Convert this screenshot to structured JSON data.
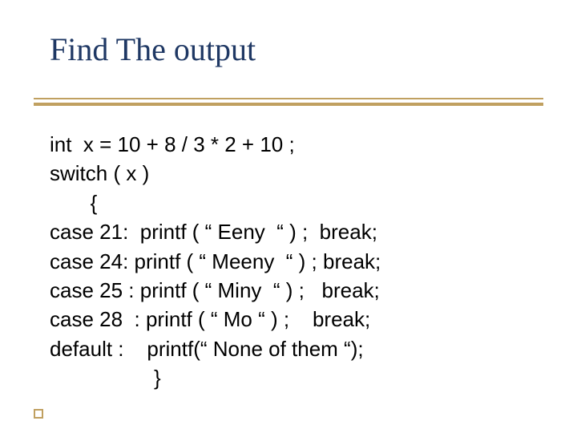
{
  "title": {
    "text": "Find The output",
    "color": "#1f3864",
    "fontsize": 40,
    "font_family": "Times New Roman"
  },
  "divider": {
    "color": "#c0a060"
  },
  "body": {
    "color": "#000000",
    "fontsize": 26,
    "font_family": "Arial",
    "lines": [
      "int  x = 10 + 8 / 3 * 2 + 10 ;",
      "switch ( x )",
      "       {",
      "case 21:  printf ( “ Eeny  “ ) ;  break;",
      "case 24: printf ( “ Meeny  “ ) ; break;",
      "case 25 : printf ( “ Miny  “ ) ;   break;",
      "case 28  : printf ( “ Mo “ ) ;    break;",
      "default :    printf(“ None of them “);",
      "                  }"
    ]
  },
  "corner_box": {
    "color": "#c0a060"
  },
  "background_color": "#ffffff",
  "slide_width": 720,
  "slide_height": 540
}
